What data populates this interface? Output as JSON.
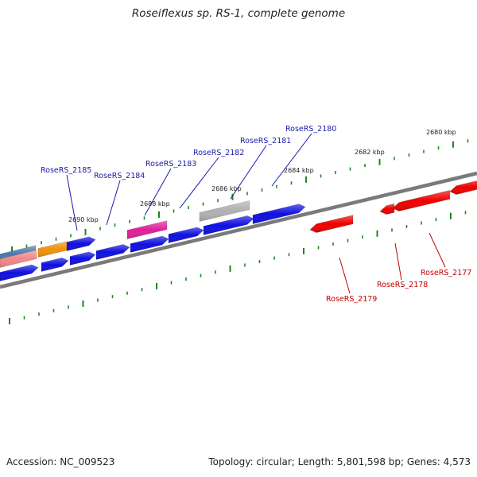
{
  "title": "Roseiflexus sp. RS-1, complete genome",
  "footer": {
    "accession": "Accession: NC_009523",
    "summary": "Topology: circular; Length: 5,801,598 bp; Genes: 4,573"
  },
  "colors": {
    "backbone": "#7a7a7a",
    "tick": "#1a8a1a",
    "blue_gene": "#1010e0",
    "red_gene": "#ee0000",
    "magenta_gene": "#e0209a",
    "orange_gene": "#f0900a",
    "gray_gene": "#b0b0b0",
    "steel_gene": "#4a78b0",
    "pink_gene": "#f08888",
    "blue_label": "#1a1aa8",
    "red_label": "#c40000"
  },
  "ticks": [
    {
      "label": "2680 kbp"
    },
    {
      "label": "2682 kbp"
    },
    {
      "label": "2684 kbp"
    },
    {
      "label": "2686 kbp"
    },
    {
      "label": "2688 kbp"
    },
    {
      "label": "2690 kbp"
    }
  ],
  "gene_labels": [
    {
      "text": "RoseRS_2185",
      "color": "blue"
    },
    {
      "text": "RoseRS_2184",
      "color": "blue"
    },
    {
      "text": "RoseRS_2183",
      "color": "blue"
    },
    {
      "text": "RoseRS_2182",
      "color": "blue"
    },
    {
      "text": "RoseRS_2181",
      "color": "blue"
    },
    {
      "text": "RoseRS_2180",
      "color": "blue"
    },
    {
      "text": "RoseRS_2179",
      "color": "red"
    },
    {
      "text": "RoseRS_2178",
      "color": "red"
    },
    {
      "text": "RoseRS_2177",
      "color": "red"
    }
  ]
}
